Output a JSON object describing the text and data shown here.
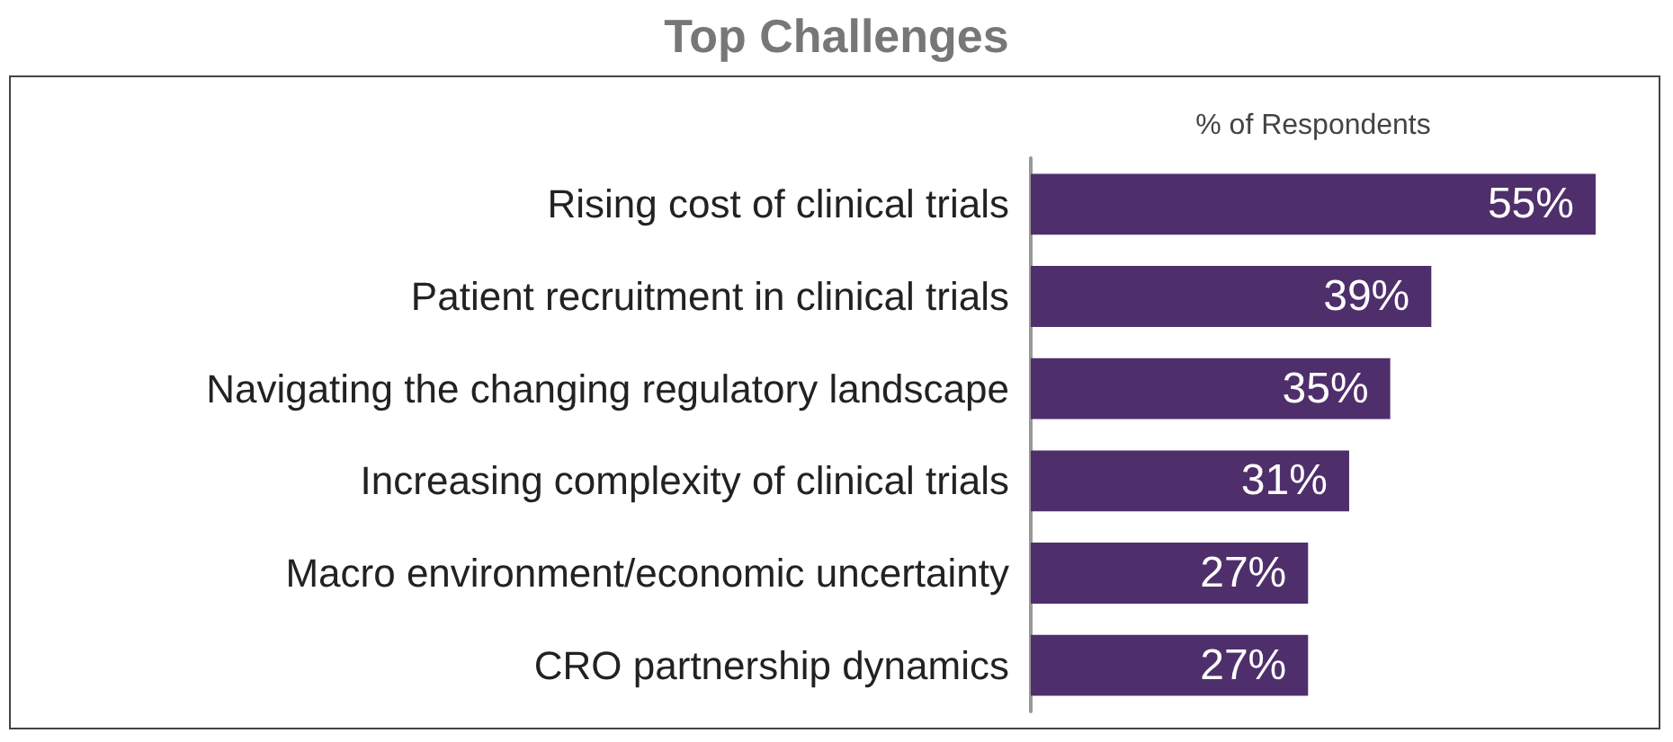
{
  "chart_data": {
    "type": "bar",
    "orientation": "horizontal",
    "title": "Top Challenges",
    "xlabel": "% of Respondents",
    "categories": [
      "Rising cost of clinical trials",
      "Patient recruitment in clinical trials",
      "Navigating the changing regulatory landscape",
      "Increasing complexity of clinical trials",
      "Macro environment/economic uncertainty",
      "CRO partnership dynamics"
    ],
    "values": [
      55,
      39,
      35,
      31,
      27,
      27
    ],
    "value_labels": [
      "55%",
      "39%",
      "35%",
      "31%",
      "27%",
      "27%"
    ],
    "color": "#4f2f6b",
    "relative": false,
    "xlim": [
      0,
      55
    ],
    "grid": false
  }
}
